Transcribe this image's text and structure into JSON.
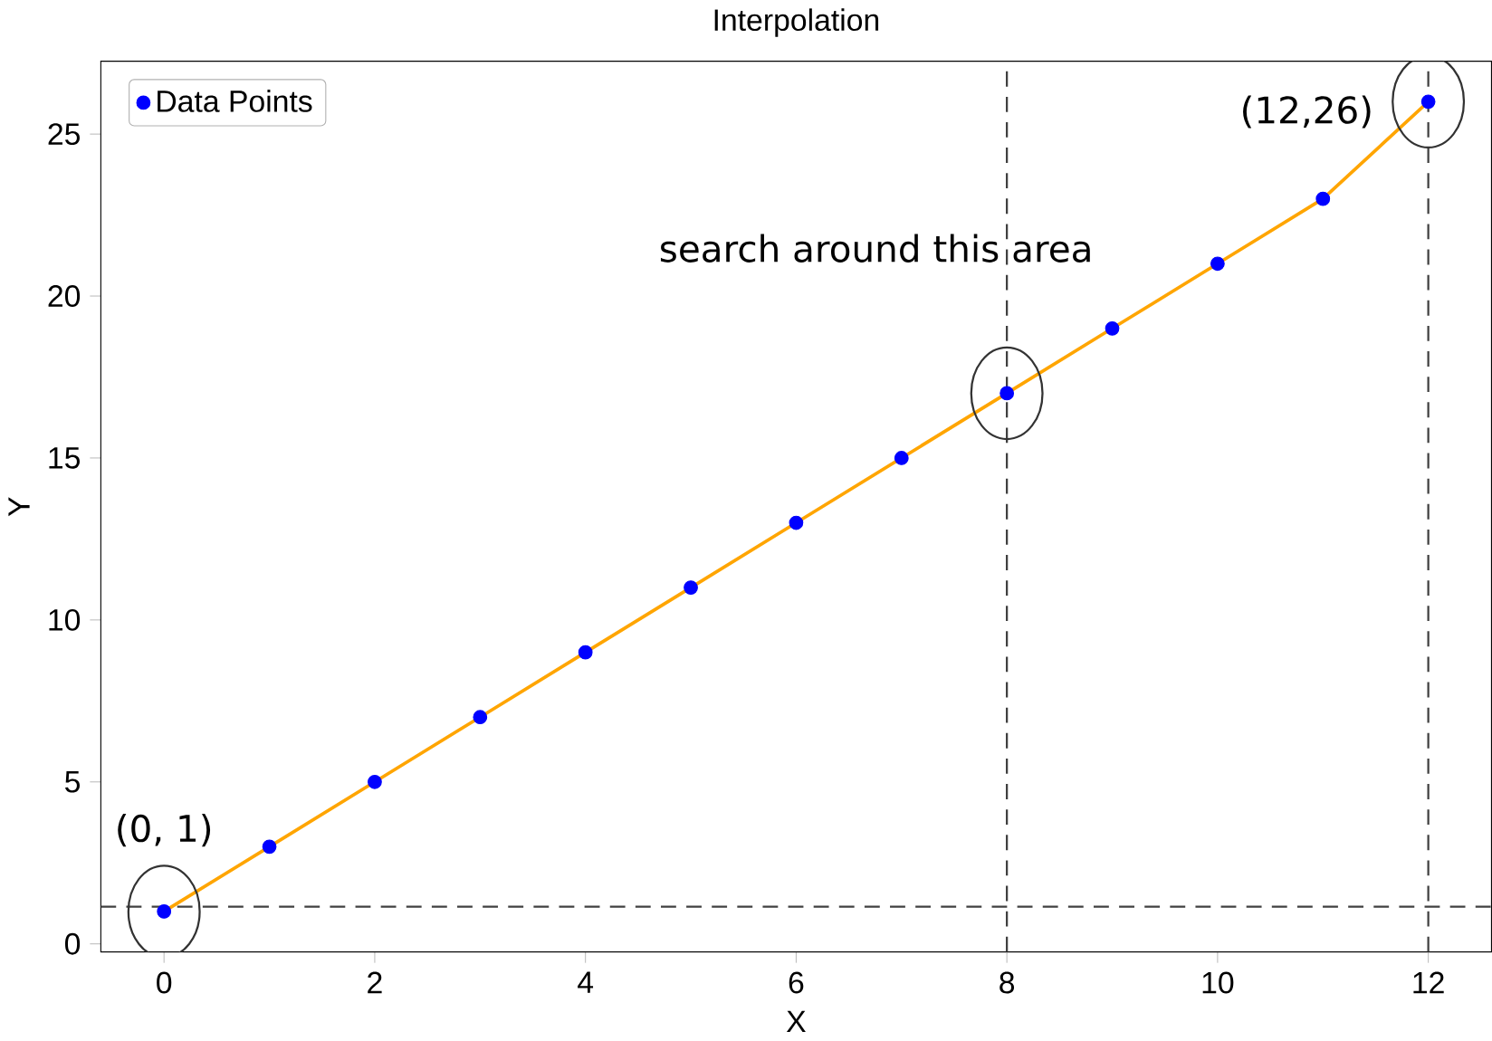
{
  "chart_data": {
    "type": "line",
    "title": "Interpolation",
    "xlabel": "X",
    "ylabel": "Y",
    "x": [
      0,
      1,
      2,
      3,
      4,
      5,
      6,
      7,
      8,
      9,
      10,
      11,
      12
    ],
    "series": [
      {
        "name": "Data Points",
        "type": "scatter",
        "color": "#0000ff",
        "marker": "circle",
        "values": [
          1,
          3,
          5,
          7,
          9,
          11,
          13,
          15,
          17,
          19,
          21,
          23,
          26
        ]
      },
      {
        "color": "#ffa500",
        "values": [
          1,
          3,
          5,
          7,
          9,
          11,
          13,
          15,
          17,
          19,
          21,
          23,
          26
        ]
      }
    ],
    "xlim": [
      -0.6,
      12.6
    ],
    "ylim": [
      -0.25,
      27.25
    ],
    "xticks": [
      0,
      2,
      4,
      6,
      8,
      10,
      12
    ],
    "yticks": [
      0,
      5,
      10,
      15,
      20,
      25
    ],
    "legend": "top left",
    "grid": false,
    "ref_lines": [
      {
        "axis": "x",
        "value": 8,
        "color": "#404040",
        "line_style": "dashed"
      },
      {
        "axis": "x",
        "value": 12,
        "color": "#404040",
        "line_style": "dashed"
      },
      {
        "axis": "y",
        "value": 1.15,
        "color": "#404040",
        "line_style": "dashed"
      }
    ],
    "annotations": [
      {
        "text": "(0, 1)",
        "x": 0,
        "y": 1
      },
      {
        "text": "(12,26)",
        "x": 12,
        "y": 26
      },
      "search around this area"
    ]
  }
}
